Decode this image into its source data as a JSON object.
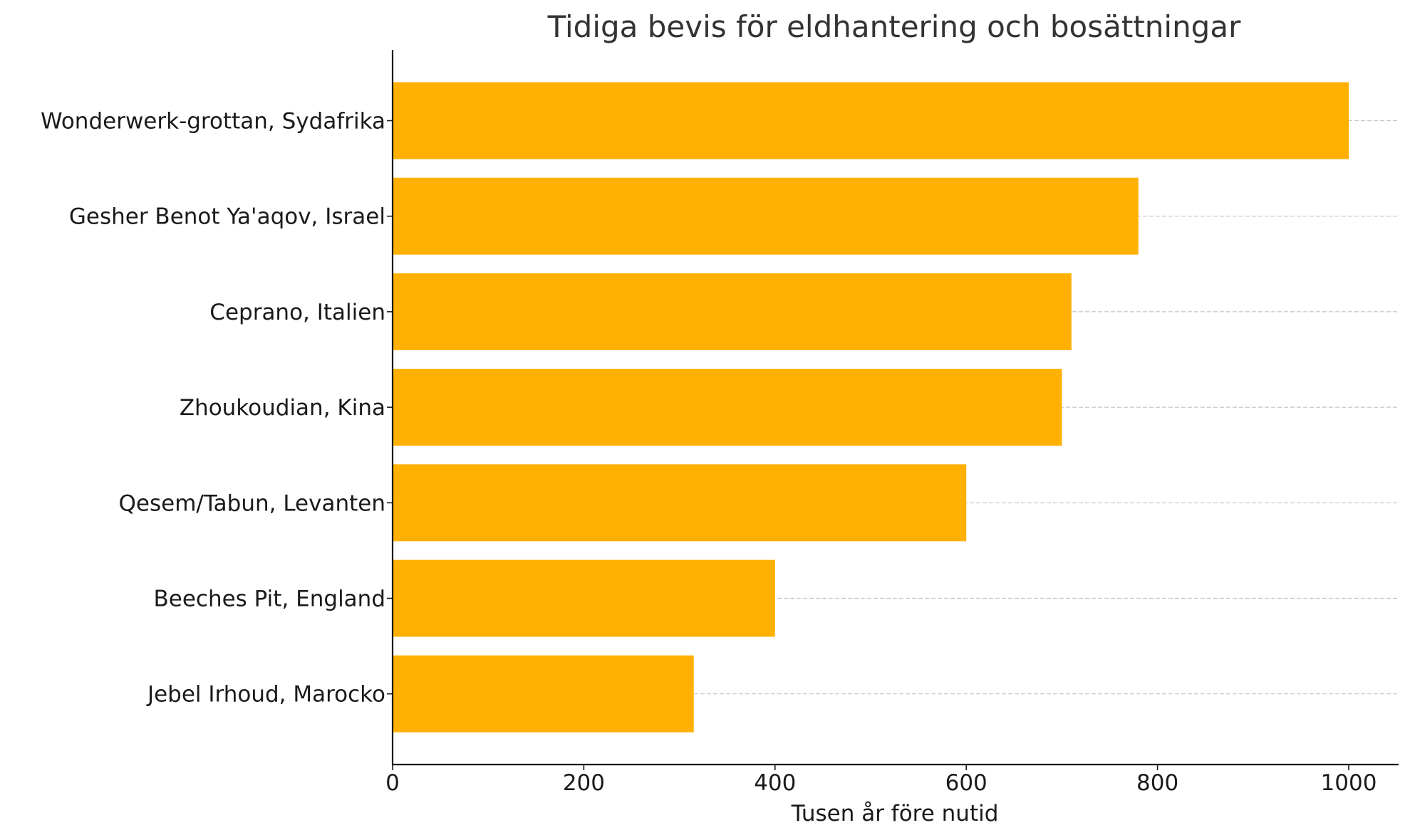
{
  "chart_data": {
    "type": "bar",
    "orientation": "horizontal",
    "title": "Tidiga bevis för eldhantering och bosättningar",
    "xlabel": "Tusen år före nutid",
    "ylabel": "",
    "categories": [
      "Wonderwerk-grottan, Sydafrika",
      "Gesher Benot Ya'aqov, Israel",
      "Ceprano, Italien",
      "Zhoukoudian, Kina",
      "Qesem/Tabun, Levanten",
      "Beeches Pit, England",
      "Jebel Irhoud, Marocko"
    ],
    "values": [
      1000,
      780,
      710,
      700,
      600,
      400,
      315
    ],
    "xlim": [
      0,
      1050
    ],
    "xticks": [
      0,
      200,
      400,
      600,
      800,
      1000
    ],
    "grid": "horizontal dashed at category lines",
    "bar_color": "#FFB000"
  }
}
